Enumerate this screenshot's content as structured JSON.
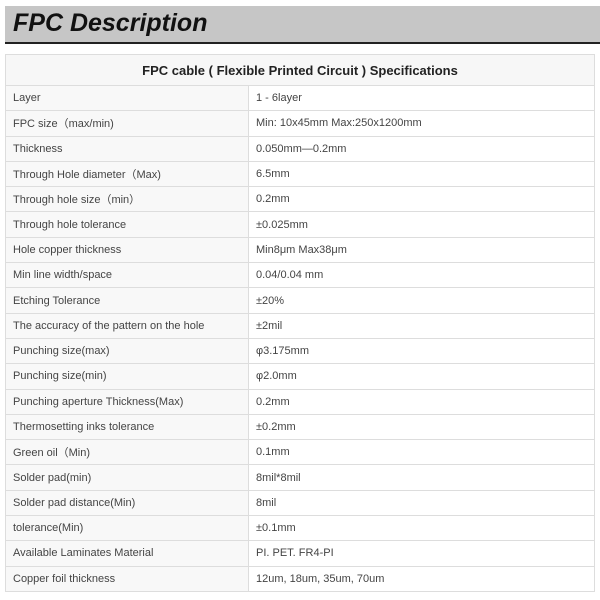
{
  "title": "FPC Description",
  "table": {
    "header": "FPC cable ( Flexible Printed Circuit ) Specifications",
    "rows": [
      [
        "Layer",
        "1 - 6layer"
      ],
      [
        "FPC size（max/min)",
        "Min: 10x45mm Max:250x1200mm"
      ],
      [
        "Thickness",
        "0.050mm—0.2mm"
      ],
      [
        "Through Hole diameter（Max)",
        "6.5mm"
      ],
      [
        "Through hole size（min）",
        "0.2mm"
      ],
      [
        "Through hole tolerance",
        "±0.025mm"
      ],
      [
        "Hole copper thickness",
        "Min8μm Max38μm"
      ],
      [
        "Min line width/space",
        "0.04/0.04 mm"
      ],
      [
        "Etching Tolerance",
        "±20%"
      ],
      [
        "The accuracy of the pattern on the hole",
        "±2mil"
      ],
      [
        "Punching size(max)",
        "φ3.175mm"
      ],
      [
        "Punching size(min)",
        "φ2.0mm"
      ],
      [
        "Punching aperture Thickness(Max)",
        "0.2mm"
      ],
      [
        "Thermosetting inks tolerance",
        "±0.2mm"
      ],
      [
        "Green oil（Min)",
        "0.1mm"
      ],
      [
        "Solder pad(min)",
        "8mil*8mil"
      ],
      [
        "Solder pad distance(Min)",
        "8mil"
      ],
      [
        "tolerance(Min)",
        "±0.1mm"
      ],
      [
        "Available Laminates Material",
        "PI. PET. FR4-PI"
      ],
      [
        "Copper foil thickness",
        "12um, 18um, 35um, 70um"
      ]
    ]
  }
}
